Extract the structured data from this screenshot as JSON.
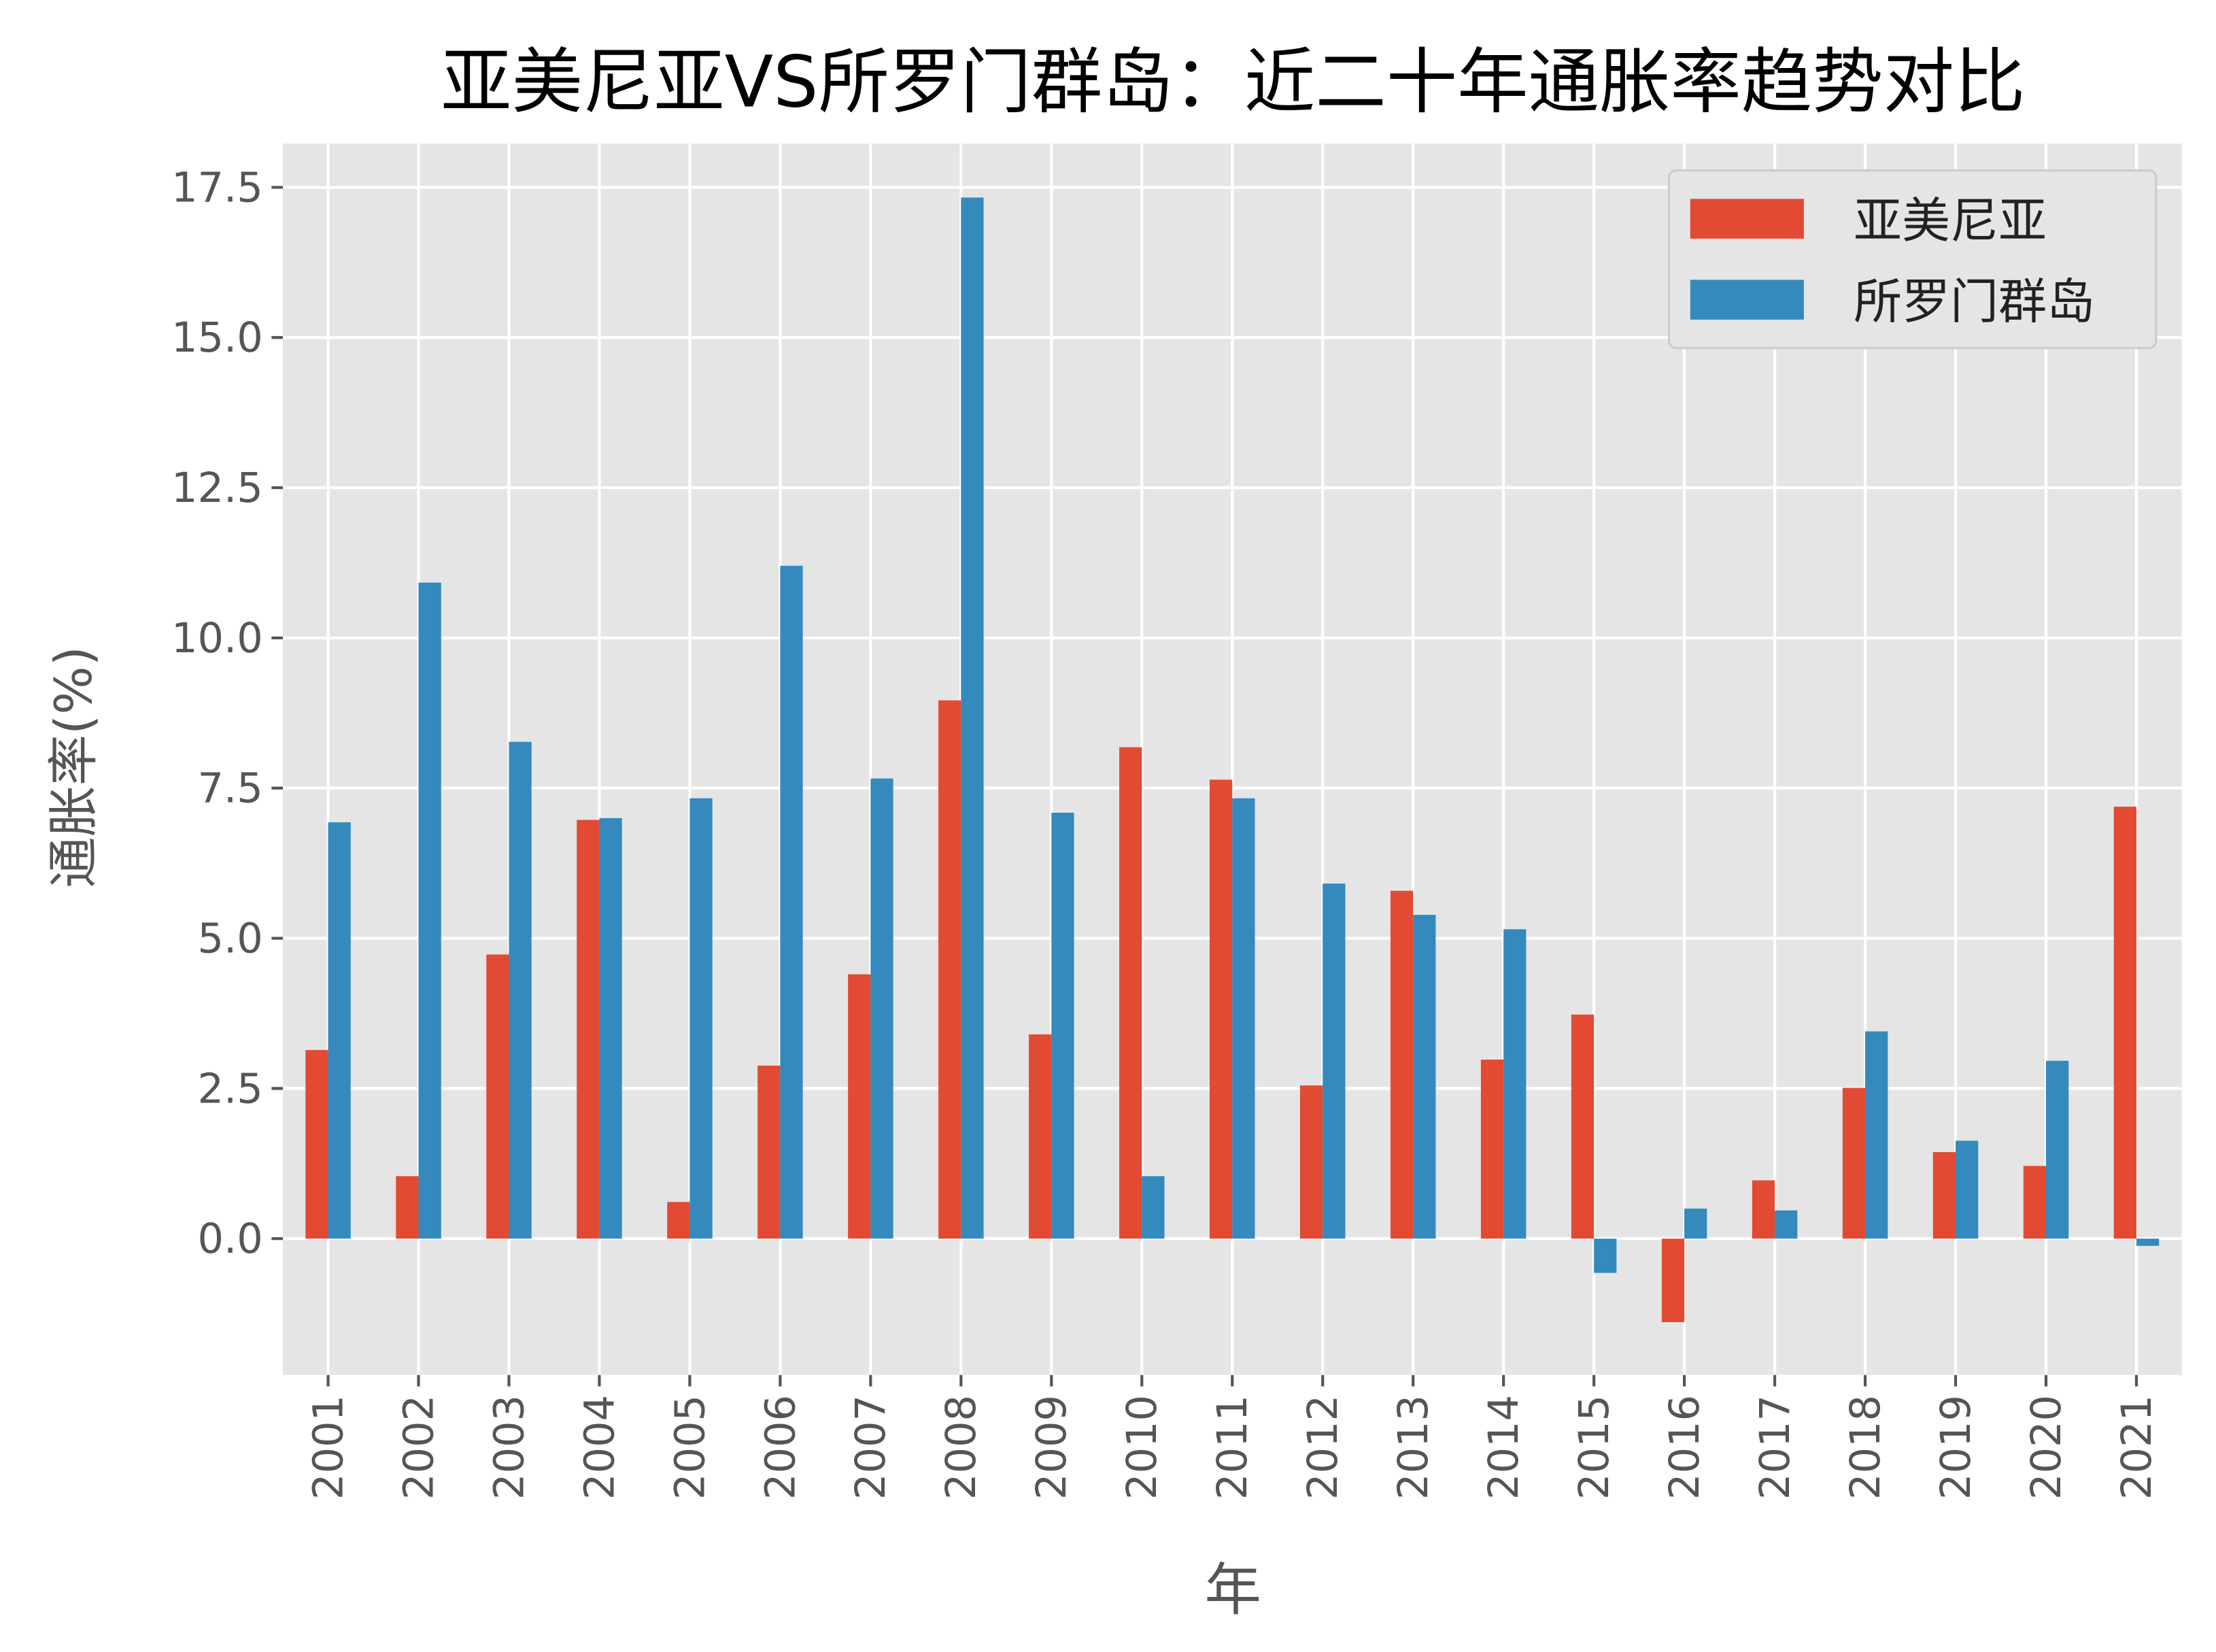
{
  "chart_data": {
    "type": "bar",
    "title": "亚美尼亚VS所罗门群岛：近二十年通胀率趋势对比",
    "xlabel": "年",
    "ylabel": "通胀率(%)",
    "categories": [
      "2001",
      "2002",
      "2003",
      "2004",
      "2005",
      "2006",
      "2007",
      "2008",
      "2009",
      "2010",
      "2011",
      "2012",
      "2013",
      "2014",
      "2015",
      "2016",
      "2017",
      "2018",
      "2019",
      "2020",
      "2021"
    ],
    "series": [
      {
        "name": "亚美尼亚",
        "color": "#E24A33",
        "values": [
          3.14,
          1.04,
          4.73,
          6.97,
          0.61,
          2.88,
          4.4,
          8.96,
          3.4,
          8.18,
          7.64,
          2.55,
          5.79,
          2.98,
          3.73,
          -1.39,
          0.97,
          2.51,
          1.44,
          1.21,
          7.19
        ]
      },
      {
        "name": "所罗门群岛",
        "color": "#348ABD",
        "values": [
          6.93,
          10.92,
          8.27,
          7.0,
          7.33,
          11.2,
          7.66,
          17.33,
          7.09,
          1.04,
          7.33,
          5.91,
          5.39,
          5.15,
          -0.57,
          0.5,
          0.47,
          3.45,
          1.63,
          2.96,
          -0.12
        ]
      }
    ],
    "yticks": [
      "0.0",
      "2.5",
      "5.0",
      "7.5",
      "10.0",
      "12.5",
      "15.0",
      "17.5"
    ],
    "ylim": [
      -2.27,
      18.23
    ],
    "grid": true,
    "legend_position": "top-right",
    "background": "#E5E5E5"
  }
}
